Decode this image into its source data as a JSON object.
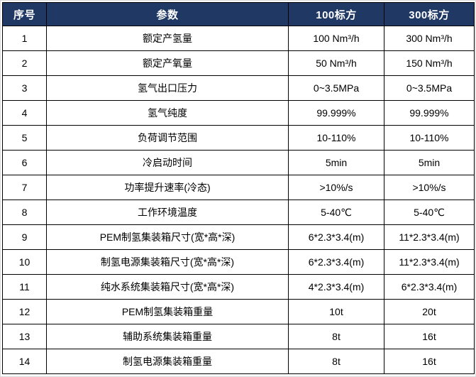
{
  "table": {
    "headers": [
      "序号",
      "参数",
      "100标方",
      "300标方"
    ],
    "rows": [
      [
        "1",
        "额定产氢量",
        "100 Nm³/h",
        "300 Nm³/h"
      ],
      [
        "2",
        "额定产氧量",
        "50 Nm³/h",
        "150 Nm³/h"
      ],
      [
        "3",
        "氢气出口压力",
        "0~3.5MPa",
        "0~3.5MPa"
      ],
      [
        "4",
        "氢气纯度",
        "99.999%",
        "99.999%"
      ],
      [
        "5",
        "负荷调节范围",
        "10-110%",
        "10-110%"
      ],
      [
        "6",
        "冷启动时间",
        "5min",
        "5min"
      ],
      [
        "7",
        "功率提升速率(冷态)",
        ">10%/s",
        ">10%/s"
      ],
      [
        "8",
        "工作环境温度",
        "5-40℃",
        "5-40℃"
      ],
      [
        "9",
        "PEM制氢集装箱尺寸(宽*高*深)",
        "6*2.3*3.4(m)",
        "11*2.3*3.4(m)"
      ],
      [
        "10",
        "制氢电源集装箱尺寸(宽*高*深)",
        "6*2.3*3.4(m)",
        "11*2.3*3.4(m)"
      ],
      [
        "11",
        "纯水系统集装箱尺寸(宽*高*深)",
        "4*2.3*3.4(m)",
        "6*2.3*3.4(m)"
      ],
      [
        "12",
        "PEM制氢集装箱重量",
        "10t",
        "20t"
      ],
      [
        "13",
        "辅助系统集装箱重量",
        "8t",
        "16t"
      ],
      [
        "14",
        "制氢电源集装箱重量",
        "8t",
        "16t"
      ]
    ],
    "colors": {
      "header_bg": "#1F3864",
      "header_text": "#FFFFFF",
      "grid": "#000000",
      "body_text": "#000000"
    }
  }
}
